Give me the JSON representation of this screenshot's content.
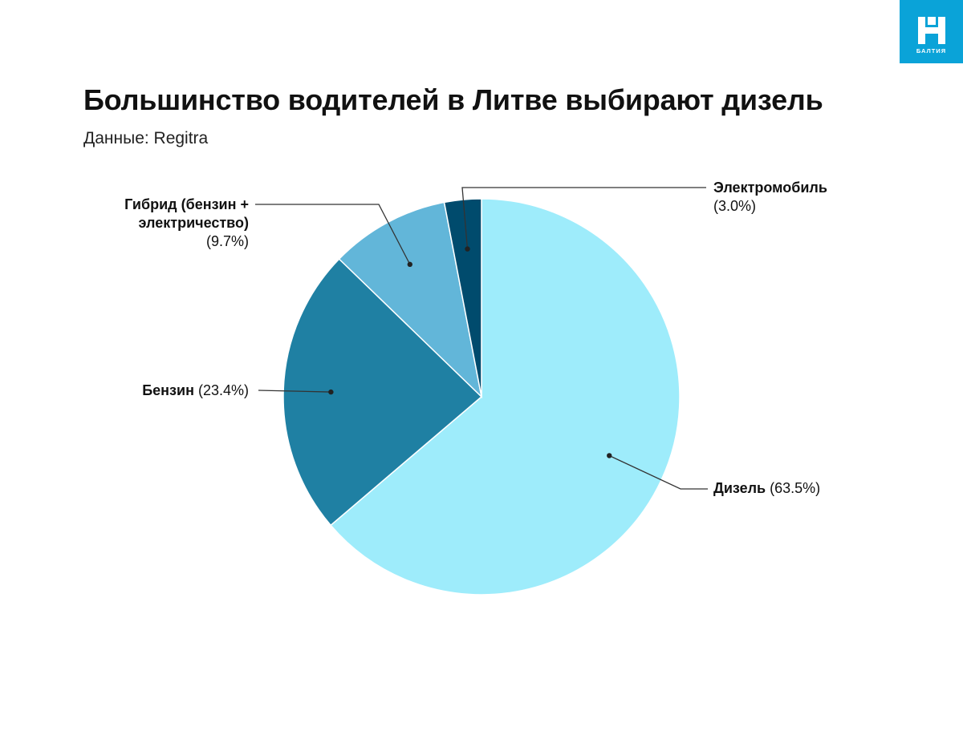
{
  "brand": {
    "logo_text": "БАЛТИЯ",
    "color": "#0aa3d8"
  },
  "header": {
    "title": "Большинство водителей в Литве выбирают дизель",
    "subtitle": "Данные: Regitra"
  },
  "chart_data": {
    "type": "pie",
    "start_angle_deg": 0,
    "direction": "clockwise",
    "slices": [
      {
        "label": "Дизель",
        "value": 63.5,
        "value_text": "(63.5%)",
        "color": "#9eecfb"
      },
      {
        "label": "Бензин",
        "value": 23.4,
        "value_text": "(23.4%)",
        "color": "#1f80a3"
      },
      {
        "label": "Гибрид (бензин + электричество)",
        "label_line1": "Гибрид (бензин +",
        "label_line2": "электричество)",
        "value": 9.7,
        "value_text": "(9.7%)",
        "color": "#62b6d9"
      },
      {
        "label": "Электромобиль",
        "value": 3.0,
        "value_text": "(3.0%)",
        "color": "#004b6d"
      }
    ]
  }
}
